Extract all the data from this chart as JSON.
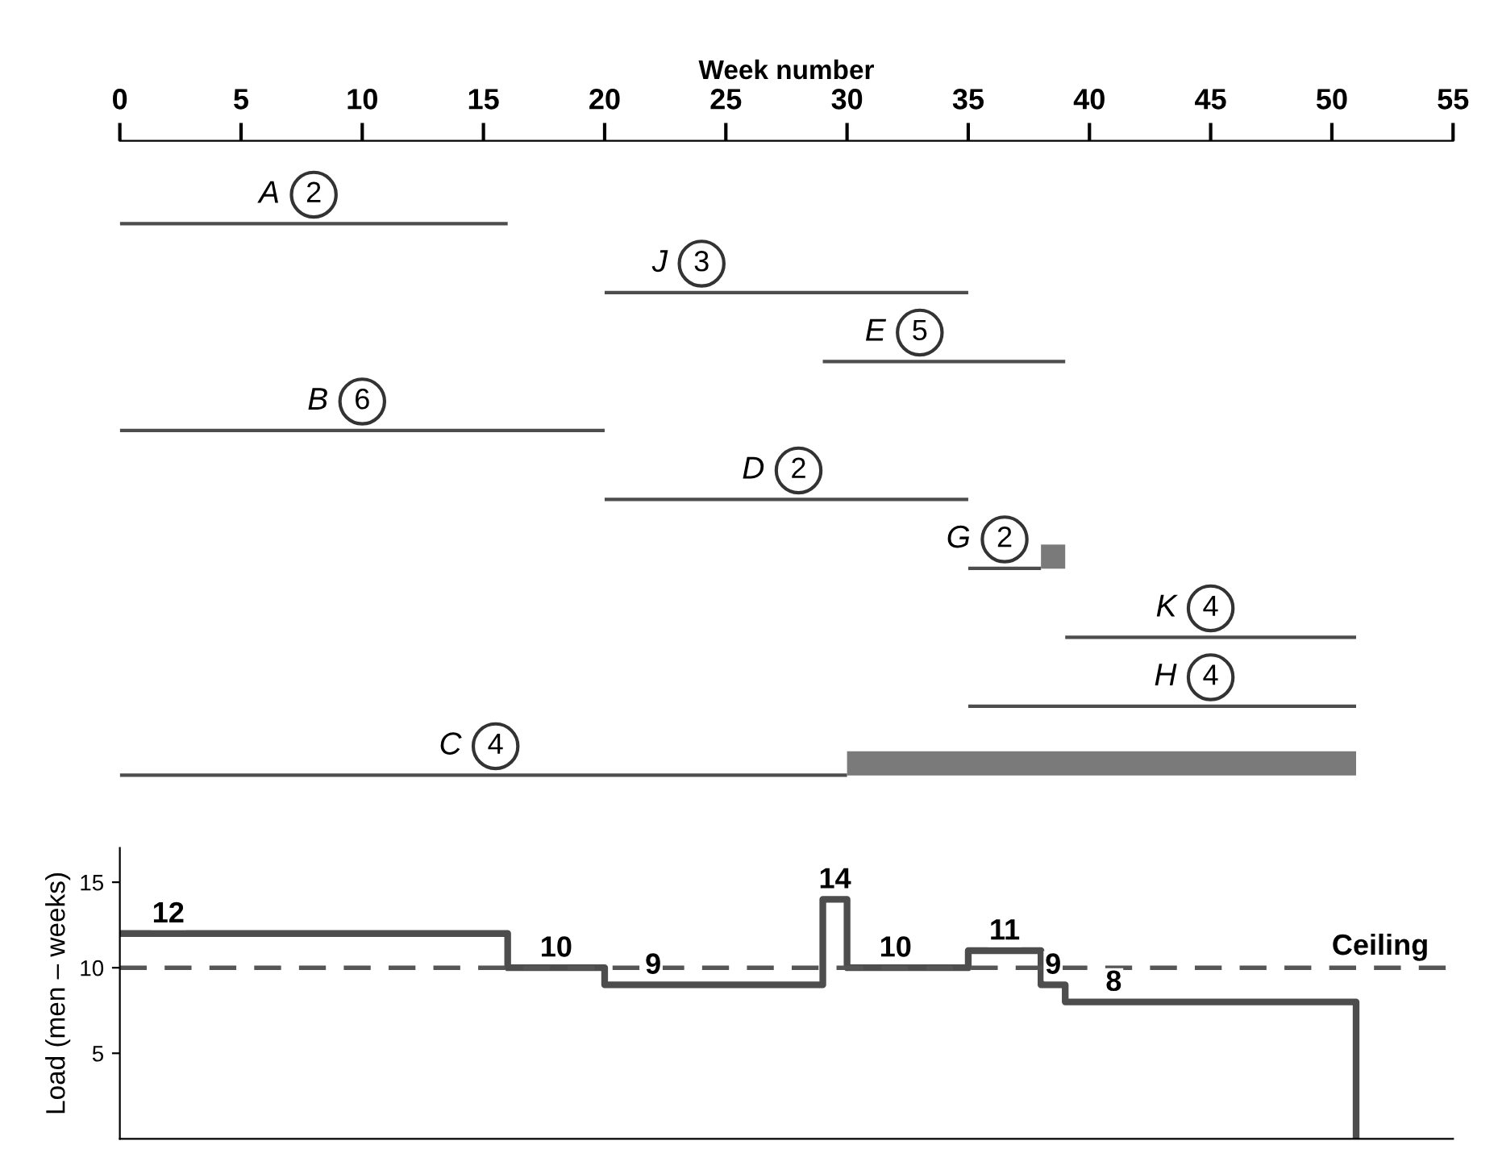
{
  "chart_data": [
    {
      "type": "bar",
      "orientation": "horizontal",
      "xlabel": "Week number",
      "xlim": [
        0,
        55
      ],
      "xticks": [
        0,
        5,
        10,
        15,
        20,
        25,
        30,
        35,
        40,
        45,
        50,
        55
      ],
      "tick_labels": "x",
      "categories": [
        "A",
        "J",
        "E",
        "B",
        "D",
        "G",
        "K",
        "H",
        "C"
      ],
      "series": [
        {
          "color": "#4d4d4d",
          "base": [
            0,
            20,
            29,
            0,
            20,
            35,
            39,
            35,
            0
          ],
          "values": [
            16,
            15,
            10,
            20,
            15,
            3,
            12,
            16,
            30
          ]
        },
        {
          "color": "#7a7a7a",
          "base": [
            null,
            null,
            null,
            null,
            null,
            38,
            null,
            null,
            30
          ],
          "values": [
            null,
            null,
            null,
            null,
            null,
            1,
            null,
            null,
            21
          ]
        }
      ],
      "annotations": [
        {
          "text": "2",
          "x": 8,
          "y": "A"
        },
        {
          "text": "3",
          "x": 24,
          "y": "J"
        },
        {
          "text": "5",
          "x": 33,
          "y": "E"
        },
        {
          "text": "6",
          "x": 10,
          "y": "B"
        },
        {
          "text": "2",
          "x": 28,
          "y": "D"
        },
        {
          "text": "2",
          "x": 36.5,
          "y": "G"
        },
        {
          "text": "4",
          "x": 45,
          "y": "K"
        },
        {
          "text": "4",
          "x": 45,
          "y": "H"
        },
        {
          "text": "4",
          "x": 15.5,
          "y": "C"
        }
      ]
    },
    {
      "type": "step",
      "ylabel": "Load (men – weeks)",
      "xlim": [
        0,
        55
      ],
      "ylim": [
        0,
        17
      ],
      "yticks": [
        5,
        10,
        15
      ],
      "tick_labels": "y",
      "x": [
        0,
        16,
        20,
        29,
        30,
        35,
        38,
        39,
        51
      ],
      "series": [
        {
          "color": "#4d4d4d",
          "values": [
            12,
            10,
            9,
            14,
            10,
            11,
            9,
            8,
            0
          ],
          "value_labels": [
            "12",
            "10",
            "9",
            "14",
            "10",
            "11",
            "9",
            "8",
            null
          ]
        }
      ],
      "ref_lines": [
        {
          "axis": "y",
          "value": 10,
          "label": "Ceiling",
          "line_style": "dashed",
          "color": "#555555"
        }
      ]
    }
  ]
}
